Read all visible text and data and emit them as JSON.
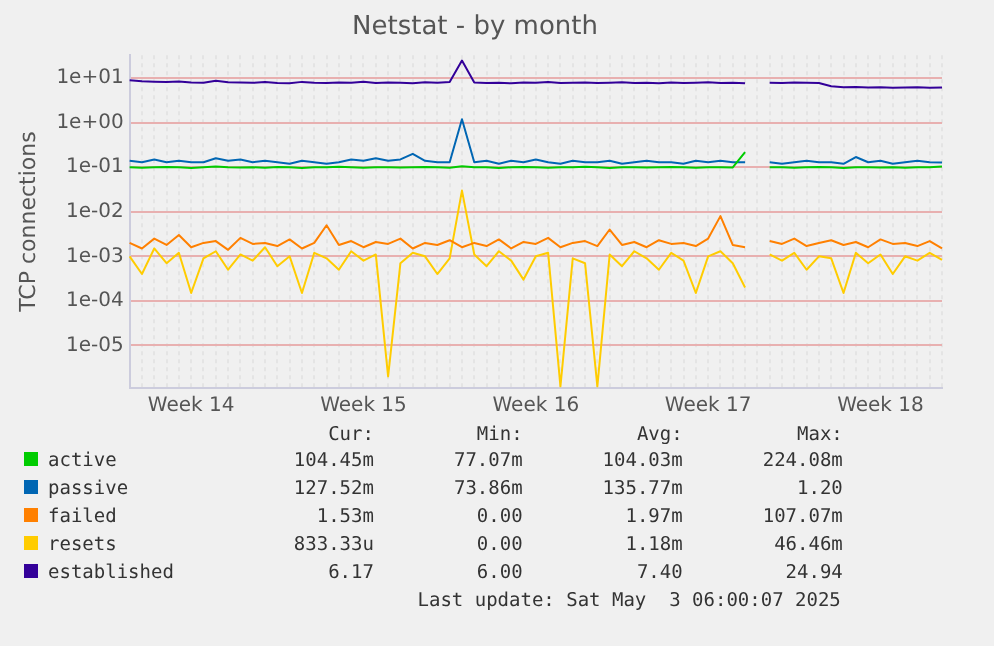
{
  "chart_data": {
    "type": "line",
    "title": "Netstat - by month",
    "ylabel": "TCP connections",
    "log": "y",
    "grid": true,
    "legend": "bottom",
    "marker": "none",
    "line_style": "solid",
    "categories": [
      null,
      null,
      null,
      null,
      null,
      "Week 14",
      null,
      null,
      null,
      null,
      null,
      null,
      null,
      null,
      null,
      null,
      null,
      null,
      null,
      "Week 15",
      null,
      null,
      null,
      null,
      null,
      null,
      null,
      null,
      null,
      null,
      null,
      null,
      null,
      "Week 16",
      null,
      null,
      null,
      null,
      null,
      null,
      null,
      null,
      null,
      null,
      null,
      null,
      null,
      "Week 17",
      null,
      null,
      null,
      null,
      null,
      null,
      null,
      null,
      null,
      null,
      null,
      null,
      null,
      "Week 18",
      null,
      null,
      null,
      null,
      null
    ],
    "ylim": [
      1.1e-06,
      33
    ],
    "yticks": [
      {
        "value": 1e-05,
        "label": "1e-05"
      },
      {
        "value": 0.0001,
        "label": "1e-04"
      },
      {
        "value": 0.001,
        "label": "1e-03"
      },
      {
        "value": 0.01,
        "label": "1e-02"
      },
      {
        "value": 0.1,
        "label": "1e-01"
      },
      {
        "value": 1,
        "label": "1e+00"
      },
      {
        "value": 10,
        "label": "1e+01"
      }
    ],
    "series": [
      {
        "name": "active",
        "color": "#00cc00",
        "values": [
          0.1,
          0.098,
          0.1,
          0.102,
          0.1,
          0.097,
          0.1,
          0.104,
          0.1,
          0.099,
          0.1,
          0.098,
          0.101,
          0.1,
          0.097,
          0.1,
          0.1,
          0.103,
          0.1,
          0.098,
          0.1,
          0.1,
          0.099,
          0.1,
          0.102,
          0.1,
          0.098,
          0.105,
          0.1,
          0.1,
          0.097,
          0.1,
          0.101,
          0.1,
          0.098,
          0.1,
          0.1,
          0.103,
          0.1,
          0.097,
          0.1,
          0.1,
          0.099,
          0.1,
          0.102,
          0.1,
          0.098,
          0.1,
          0.1,
          0.099,
          0.22,
          null,
          0.1,
          0.1,
          0.098,
          0.1,
          0.101,
          0.1,
          0.097,
          0.1,
          0.1,
          0.099,
          0.1,
          0.098,
          0.1,
          0.1,
          0.104
        ]
      },
      {
        "name": "passive",
        "color": "#0066b3",
        "values": [
          0.14,
          0.13,
          0.15,
          0.13,
          0.14,
          0.13,
          0.13,
          0.16,
          0.14,
          0.15,
          0.13,
          0.14,
          0.13,
          0.12,
          0.14,
          0.13,
          0.12,
          0.13,
          0.15,
          0.14,
          0.16,
          0.14,
          0.15,
          0.2,
          0.14,
          0.13,
          0.13,
          1.2,
          0.13,
          0.14,
          0.12,
          0.14,
          0.13,
          0.15,
          0.13,
          0.12,
          0.14,
          0.13,
          0.13,
          0.14,
          0.12,
          0.13,
          0.14,
          0.13,
          0.13,
          0.12,
          0.14,
          0.13,
          0.14,
          0.13,
          0.13,
          null,
          0.13,
          0.12,
          0.13,
          0.14,
          0.13,
          0.13,
          0.12,
          0.17,
          0.13,
          0.14,
          0.12,
          0.13,
          0.14,
          0.13,
          0.128
        ]
      },
      {
        "name": "failed",
        "color": "#ff8000",
        "values": [
          0.002,
          0.0015,
          0.0025,
          0.0018,
          0.003,
          0.0016,
          0.002,
          0.0022,
          0.0014,
          0.0026,
          0.0019,
          0.002,
          0.0017,
          0.0024,
          0.0015,
          0.002,
          0.005,
          0.0018,
          0.0022,
          0.0016,
          0.0021,
          0.0019,
          0.0025,
          0.0015,
          0.002,
          0.0018,
          0.0023,
          0.0016,
          0.002,
          0.0017,
          0.0024,
          0.0015,
          0.0021,
          0.0019,
          0.0026,
          0.0016,
          0.002,
          0.0022,
          0.0017,
          0.004,
          0.0018,
          0.0021,
          0.0016,
          0.0023,
          0.0019,
          0.002,
          0.0017,
          0.0025,
          0.008,
          0.0018,
          0.0016,
          null,
          0.0022,
          0.0019,
          0.0025,
          0.0017,
          0.002,
          0.0023,
          0.0018,
          0.0021,
          0.0016,
          0.0024,
          0.0019,
          0.002,
          0.0017,
          0.0022,
          0.0015
        ]
      },
      {
        "name": "resets",
        "color": "#ffcc00",
        "values": [
          0.001,
          0.0004,
          0.0015,
          0.0007,
          0.0012,
          0.00015,
          0.0009,
          0.0013,
          0.0005,
          0.0011,
          0.0008,
          0.0016,
          0.0006,
          0.001,
          0.00015,
          0.0012,
          0.0009,
          0.0005,
          0.0013,
          0.0008,
          0.0011,
          2e-06,
          0.0007,
          0.0012,
          0.001,
          0.0004,
          0.0009,
          0.03,
          0.0011,
          0.0006,
          0.0013,
          0.0008,
          0.0003,
          0.001,
          0.0012,
          1.2e-06,
          0.0009,
          0.0007,
          1.2e-06,
          0.0011,
          0.0006,
          0.0013,
          0.0009,
          0.0005,
          0.0012,
          0.0008,
          0.00015,
          0.001,
          0.0013,
          0.0007,
          0.0002,
          null,
          0.0011,
          0.0008,
          0.0012,
          0.0005,
          0.001,
          0.0009,
          0.00015,
          0.0012,
          0.0007,
          0.0011,
          0.0004,
          0.001,
          0.0008,
          0.0012,
          0.00083
        ]
      },
      {
        "name": "established",
        "color": "#330099",
        "values": [
          9,
          8.6,
          8.4,
          8.2,
          8.5,
          8.0,
          7.9,
          8.8,
          8.1,
          8.0,
          7.9,
          8.2,
          7.8,
          7.7,
          8.3,
          7.9,
          7.8,
          8.0,
          7.9,
          8.4,
          7.8,
          8.0,
          7.9,
          7.7,
          8.1,
          7.9,
          8.2,
          24.94,
          8.0,
          7.8,
          7.9,
          7.7,
          8.0,
          7.9,
          8.2,
          7.8,
          7.9,
          8.0,
          7.8,
          7.9,
          8.1,
          7.8,
          7.9,
          7.7,
          8.0,
          7.8,
          7.9,
          8.1,
          7.8,
          7.9,
          7.7,
          null,
          7.9,
          7.8,
          8.0,
          7.9,
          7.8,
          6.6,
          6.3,
          6.4,
          6.2,
          6.3,
          6.1,
          6.2,
          6.3,
          6.1,
          6.17
        ]
      }
    ],
    "annotations": [
      "Cur:",
      "Min:",
      "Avg:",
      "Max:",
      "104.45m",
      "77.07m",
      "104.03m",
      "224.08m",
      "127.52m",
      "73.86m",
      "135.77m",
      "1.20",
      "1.53m",
      "0.00",
      "1.97m",
      "107.07m",
      "833.33u",
      "0.00",
      "1.18m",
      "46.46m",
      "6.17",
      "6.00",
      "7.40",
      "24.94",
      "Last update: Sat May  3 06:00:07 2025"
    ]
  }
}
